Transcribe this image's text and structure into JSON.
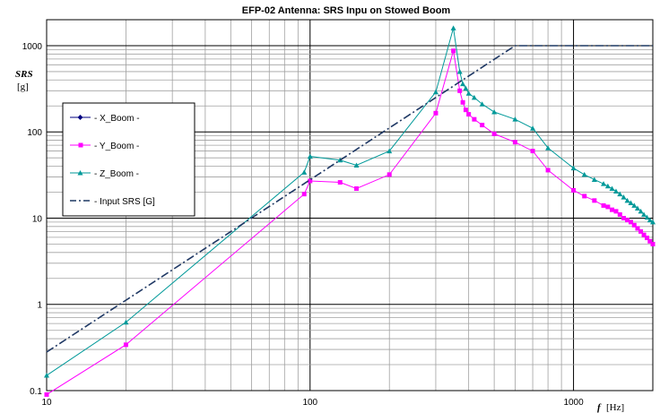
{
  "chart_data": {
    "type": "line",
    "title": "EFP-02 Antenna: SRS Inpu on Stowed Boom",
    "ylabel_line1": "SRS",
    "ylabel_line2": "[g]",
    "xlabel_var": "f",
    "xlabel_unit": "[Hz]",
    "x_scale": "log",
    "y_scale": "log",
    "xlim": [
      10,
      2000
    ],
    "ylim": [
      0.1,
      2000
    ],
    "x_tick_labels": [
      "10",
      "100",
      "1000"
    ],
    "y_tick_labels": [
      "0.1",
      "1",
      "10",
      "100",
      "1000"
    ],
    "grid": true,
    "legend_position": "left",
    "series": [
      {
        "name": "- X_Boom -",
        "color": "#000080",
        "marker": "diamond",
        "x": [],
        "y": []
      },
      {
        "name": "- Y_Boom -",
        "color": "#ff00ff",
        "marker": "square",
        "x": [
          10,
          20,
          95,
          100,
          130,
          150,
          200,
          300,
          350,
          370,
          380,
          390,
          400,
          420,
          450,
          500,
          600,
          700,
          800,
          1000,
          1100,
          1200,
          1300,
          1350,
          1400,
          1450,
          1500,
          1550,
          1600,
          1650,
          1700,
          1750,
          1800,
          1850,
          1900,
          1950,
          2000
        ],
        "y": [
          0.09,
          0.34,
          19,
          27,
          26,
          22,
          32,
          165,
          870,
          300,
          220,
          180,
          160,
          140,
          120,
          95,
          76,
          60,
          36,
          21,
          18,
          16,
          14,
          13.5,
          12.5,
          12,
          11,
          10,
          9.5,
          9,
          8.3,
          7.6,
          7,
          6.4,
          5.9,
          5.4,
          5
        ]
      },
      {
        "name": "- Z_Boom -",
        "color": "#009999",
        "marker": "triangle",
        "x": [
          10,
          20,
          95,
          100,
          130,
          150,
          200,
          300,
          350,
          370,
          380,
          390,
          400,
          420,
          450,
          500,
          600,
          700,
          800,
          1000,
          1100,
          1200,
          1300,
          1350,
          1400,
          1450,
          1500,
          1550,
          1600,
          1650,
          1700,
          1750,
          1800,
          1850,
          1900,
          1950,
          2000
        ],
        "y": [
          0.15,
          0.62,
          34,
          52,
          47,
          41,
          60,
          290,
          1600,
          500,
          360,
          320,
          280,
          250,
          210,
          170,
          140,
          110,
          65,
          38,
          32,
          28,
          25,
          23.5,
          22,
          20.5,
          19,
          17.5,
          16,
          15,
          14,
          13,
          12,
          11,
          10.2,
          9.5,
          9
        ]
      },
      {
        "name": "- Input SRS [G]",
        "color": "#1f3864",
        "style": "dashdot",
        "x": [
          10,
          600,
          2000
        ],
        "y": [
          0.28,
          1000,
          1000
        ]
      }
    ]
  }
}
